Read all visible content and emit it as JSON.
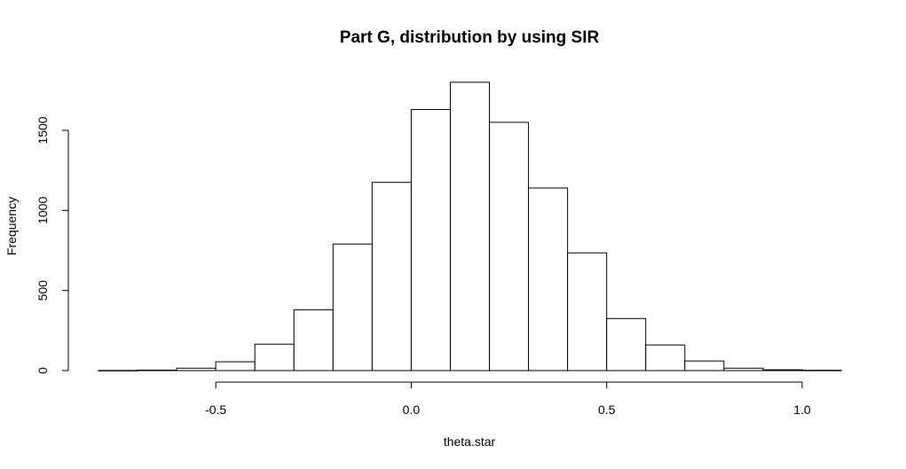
{
  "chart_data": {
    "type": "bar",
    "title": "Part G, distribution by using SIR",
    "xlabel": "theta.star",
    "ylabel": "Frequency",
    "bin_edges": [
      -0.8,
      -0.7,
      -0.6,
      -0.5,
      -0.4,
      -0.3,
      -0.2,
      -0.1,
      0.0,
      0.1,
      0.2,
      0.3,
      0.4,
      0.5,
      0.6,
      0.7,
      0.8,
      0.9,
      1.0,
      1.1
    ],
    "values": [
      1,
      3,
      15,
      55,
      165,
      380,
      790,
      1175,
      1630,
      1800,
      1550,
      1140,
      735,
      325,
      160,
      60,
      15,
      5,
      2
    ],
    "xlim": [
      -0.8,
      1.1
    ],
    "ylim": [
      0,
      1900
    ],
    "x_ticks": [
      -0.5,
      0.0,
      0.5,
      1.0
    ],
    "x_tick_labels": [
      "-0.5",
      "0.0",
      "0.5",
      "1.0"
    ],
    "y_ticks": [
      0,
      500,
      1000,
      1500
    ],
    "y_tick_labels": [
      "0",
      "500",
      "1000",
      "1500"
    ],
    "grid": false,
    "legend": "none"
  }
}
